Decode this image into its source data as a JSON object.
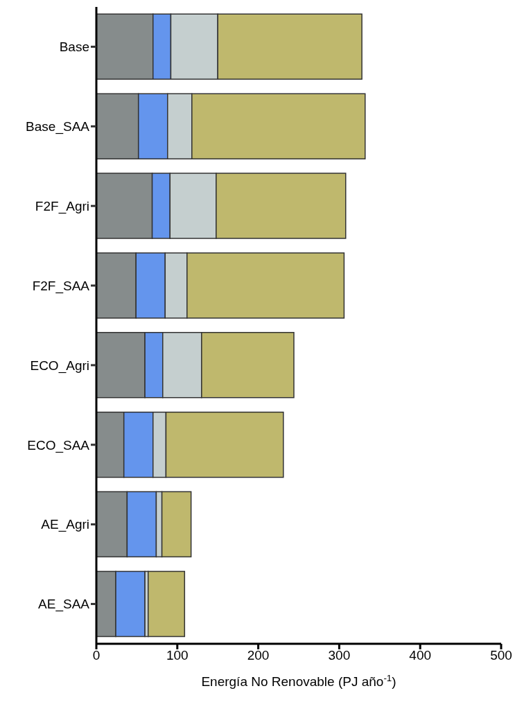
{
  "chart_data": {
    "type": "bar",
    "orientation": "horizontal",
    "stacked": true,
    "xlabel": "Energía No Renovable (PJ año$^{-1}$)",
    "categories": [
      "Base",
      "Base_SAA",
      "F2F_Agri",
      "F2F_SAA",
      "ECO_Agri",
      "ECO_SAA",
      "AE_Agri",
      "AE_SAA"
    ],
    "series": [
      {
        "color": "#868c8c",
        "values": [
          70,
          52,
          69,
          49,
          60,
          34,
          38,
          24
        ]
      },
      {
        "color": "#6495ed",
        "values": [
          22,
          36,
          22,
          36,
          22,
          36,
          36,
          36
        ]
      },
      {
        "color": "#c5cfcf",
        "values": [
          58,
          30,
          57,
          27,
          48,
          16,
          7,
          4
        ]
      },
      {
        "color": "#bfb86d",
        "values": [
          178,
          214,
          160,
          194,
          114,
          145,
          36,
          45
        ]
      }
    ],
    "xlim": [
      0,
      500
    ],
    "xticks": [
      0,
      100,
      200,
      300,
      400,
      500
    ],
    "grid": false,
    "legend": false
  }
}
